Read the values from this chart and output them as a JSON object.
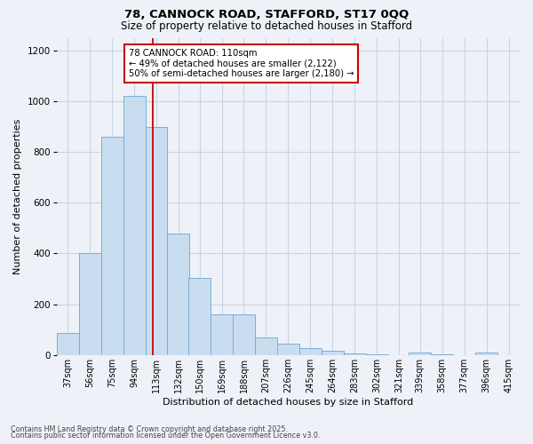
{
  "title1": "78, CANNOCK ROAD, STAFFORD, ST17 0QQ",
  "title2": "Size of property relative to detached houses in Stafford",
  "xlabel": "Distribution of detached houses by size in Stafford",
  "ylabel": "Number of detached properties",
  "footer1": "Contains HM Land Registry data © Crown copyright and database right 2025.",
  "footer2": "Contains public sector information licensed under the Open Government Licence v3.0.",
  "annotation_title": "78 CANNOCK ROAD: 110sqm",
  "annotation_line1": "← 49% of detached houses are smaller (2,122)",
  "annotation_line2": "50% of semi-detached houses are larger (2,180) →",
  "vline_x": 110,
  "bar_color": "#c9ddf0",
  "bar_edgecolor": "#7aafd4",
  "vline_color": "#cc0000",
  "grid_color": "#c8d4e4",
  "bg_color": "#eef2f8",
  "categories": [
    37,
    56,
    75,
    94,
    113,
    132,
    150,
    169,
    188,
    207,
    226,
    245,
    264,
    283,
    302,
    321,
    339,
    358,
    377,
    396,
    415
  ],
  "values": [
    85,
    400,
    860,
    1020,
    900,
    480,
    305,
    160,
    160,
    70,
    45,
    28,
    18,
    5,
    3,
    0,
    10,
    3,
    0,
    10,
    0
  ],
  "ylim": [
    0,
    1250
  ],
  "yticks": [
    0,
    200,
    400,
    600,
    800,
    1000,
    1200
  ],
  "bar_step": 19
}
